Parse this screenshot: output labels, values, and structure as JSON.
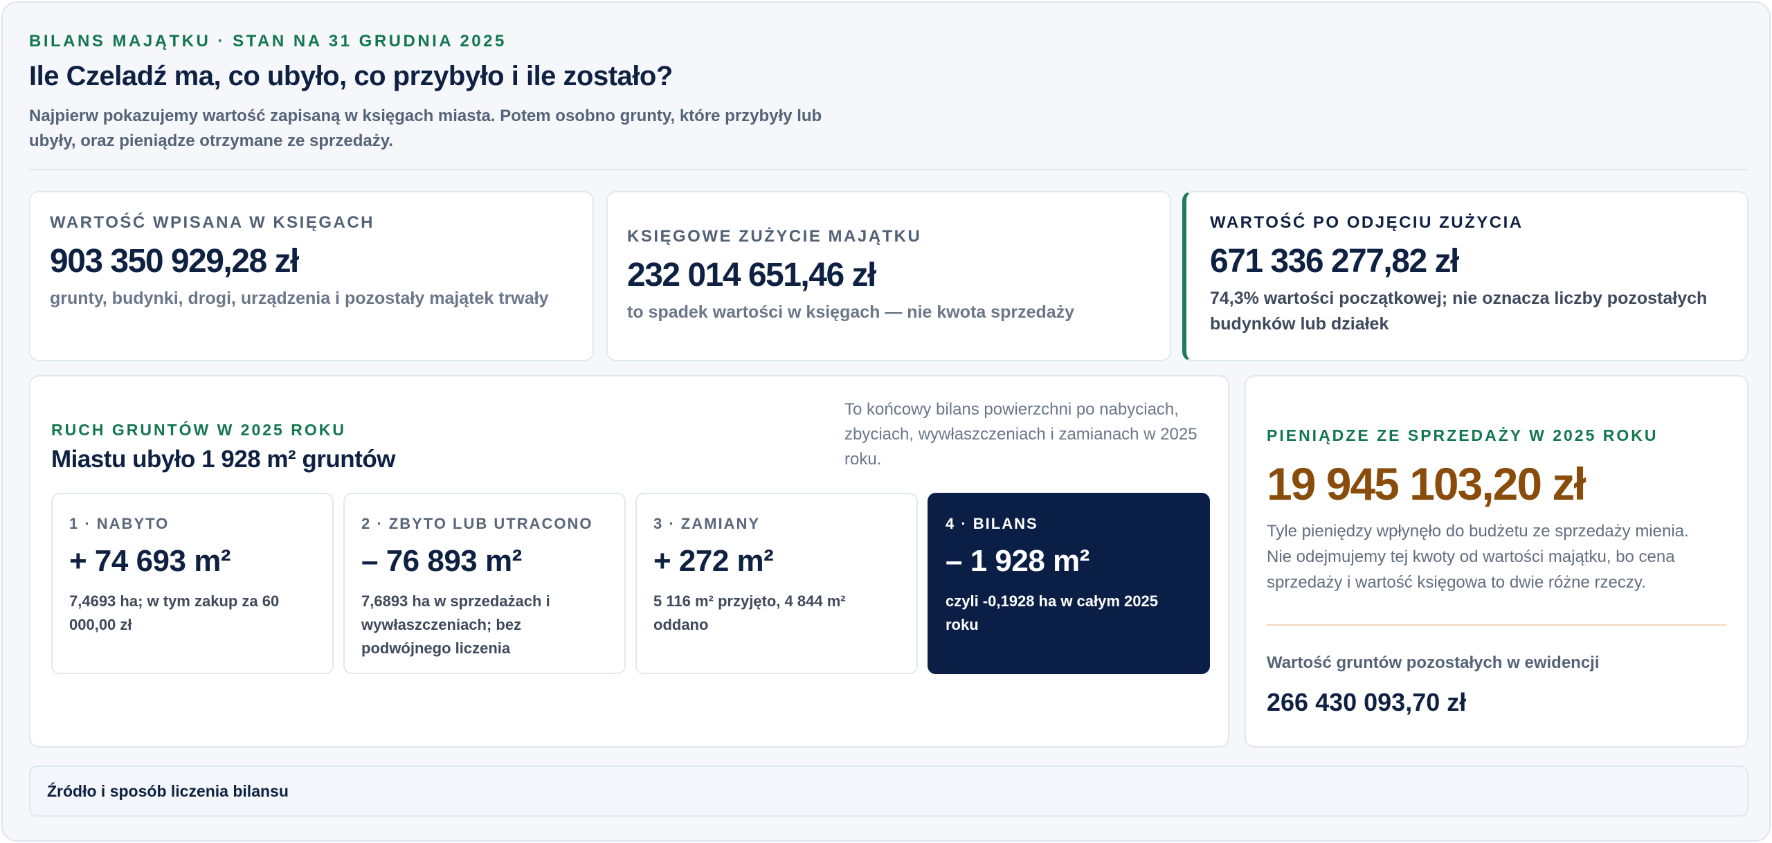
{
  "header": {
    "eyebrow": "BILANS MAJĄTKU · STAN NA 31 GRUDNIA 2025",
    "title": "Ile Czeladź ma, co ubyło, co przybyło i ile zostało?",
    "intro": "Najpierw pokazujemy wartość zapisaną w księgach miasta. Potem osobno grunty, które przybyły lub ubyły, oraz pieniądze otrzymane ze sprzedaży."
  },
  "kpis": [
    {
      "label": "WARTOŚĆ WPISANA W KSIĘGACH",
      "value": "903 350 929,28 zł",
      "note": "grunty, budynki, drogi, urządzenia i pozostały majątek trwały"
    },
    {
      "label": "KSIĘGOWE ZUŻYCIE MAJĄTKU",
      "value": "232 014 651,46 zł",
      "note": "to spadek wartości w księgach — nie kwota sprzedaży"
    },
    {
      "label": "WARTOŚĆ PO ODJĘCIU ZUŻYCIA",
      "value": "671 336 277,82 zł",
      "note": "74,3% wartości początkowej; nie oznacza liczby pozostałych budynków lub działek"
    }
  ],
  "land": {
    "eyebrow": "RUCH GRUNTÓW W 2025 ROKU",
    "title": "Miastu ubyło 1 928 m² gruntów",
    "side_note": "To końcowy bilans powierzchni po nabyciach, zbyciach, wywłaszczeniach i zamianach w 2025 roku.",
    "steps": [
      {
        "label": "1 · NABYTO",
        "value": "+ 74 693 m²",
        "note": "7,4693 ha; w tym zakup za 60 000,00 zł"
      },
      {
        "label": "2 · ZBYTO LUB UTRACONO",
        "value": "– 76 893 m²",
        "note": "7,6893 ha w sprzedażach i wywłaszczeniach; bez podwójnego liczenia"
      },
      {
        "label": "3 · ZAMIANY",
        "value": "+ 272 m²",
        "note": "5 116 m² przyjęto, 4 844 m² oddano"
      },
      {
        "label": "4 · BILANS",
        "value": "– 1 928 m²",
        "note": "czyli -0,1928 ha w całym 2025 roku"
      }
    ]
  },
  "cash": {
    "eyebrow": "PIENIĄDZE ZE SPRZEDAŻY W 2025 ROKU",
    "value": "19 945 103,20 zł",
    "description": "Tyle pieniędzy wpłynęło do budżetu ze sprzedaży mienia. Nie odejmujemy tej kwoty od wartości majątku, bo cena sprzedaży i wartość księgowa to dwie różne rzeczy.",
    "remaining_label": "Wartość gruntów pozostałych w ewidencji",
    "remaining_value": "266 430 093,70 zł"
  },
  "source": {
    "label": "Źródło i sposób liczenia bilansu"
  },
  "colors": {
    "accent_green": "#12774e",
    "navy": "#0f2142",
    "dark_card": "#0b1f46",
    "cash_brown": "#8a4c0b"
  }
}
